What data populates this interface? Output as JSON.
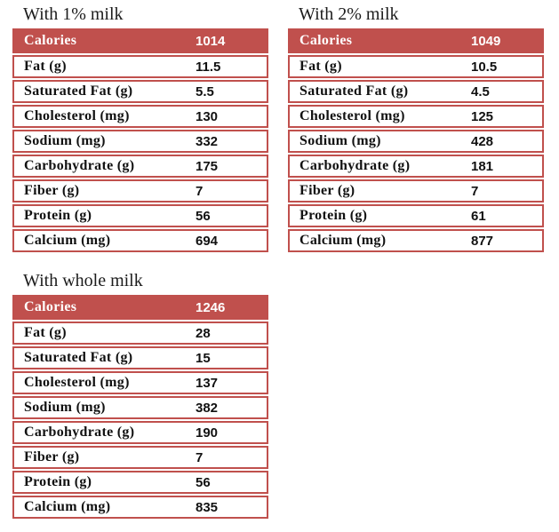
{
  "colors": {
    "accent": "#C0504D",
    "header_text": "#FFFFFF",
    "row_text": "#111111",
    "title_text": "#1C1C1C",
    "row_background": "#FFFFFF",
    "page_background": "#FFFFFF"
  },
  "chart_data": [
    {
      "type": "table",
      "title": "With 1% milk",
      "header": {
        "label": "Calories",
        "value": "1014"
      },
      "rows": [
        {
          "label": "Fat (g)",
          "value": "11.5"
        },
        {
          "label": "Saturated Fat (g)",
          "value": "5.5"
        },
        {
          "label": "Cholesterol (mg)",
          "value": "130"
        },
        {
          "label": "Sodium (mg)",
          "value": "332"
        },
        {
          "label": "Carbohydrate (g)",
          "value": "175"
        },
        {
          "label": "Fiber (g)",
          "value": "7"
        },
        {
          "label": "Protein (g)",
          "value": "56"
        },
        {
          "label": "Calcium (mg)",
          "value": "694"
        }
      ]
    },
    {
      "type": "table",
      "title": "With 2% milk",
      "header": {
        "label": "Calories",
        "value": "1049"
      },
      "rows": [
        {
          "label": "Fat (g)",
          "value": "10.5"
        },
        {
          "label": "Saturated Fat (g)",
          "value": "4.5"
        },
        {
          "label": "Cholesterol (mg)",
          "value": "125"
        },
        {
          "label": "Sodium (mg)",
          "value": "428"
        },
        {
          "label": "Carbohydrate (g)",
          "value": "181"
        },
        {
          "label": "Fiber (g)",
          "value": "7"
        },
        {
          "label": "Protein (g)",
          "value": "61"
        },
        {
          "label": "Calcium (mg)",
          "value": "877"
        }
      ]
    },
    {
      "type": "table",
      "title": "With whole milk",
      "header": {
        "label": "Calories",
        "value": "1246"
      },
      "rows": [
        {
          "label": "Fat (g)",
          "value": "28"
        },
        {
          "label": "Saturated Fat (g)",
          "value": "15"
        },
        {
          "label": "Cholesterol (mg)",
          "value": "137"
        },
        {
          "label": "Sodium (mg)",
          "value": "382"
        },
        {
          "label": "Carbohydrate (g)",
          "value": "190"
        },
        {
          "label": "Fiber (g)",
          "value": "7"
        },
        {
          "label": "Protein (g)",
          "value": "56"
        },
        {
          "label": "Calcium (mg)",
          "value": "835"
        }
      ]
    }
  ]
}
